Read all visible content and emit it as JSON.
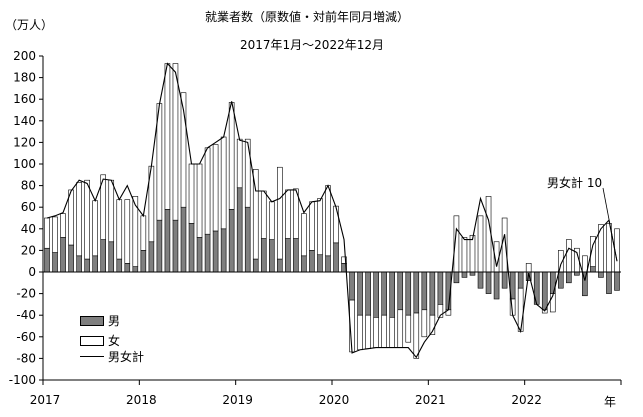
{
  "title": "就業者数（原数値・対前年同月増減）",
  "subtitle": "2017年1月～2022年12月",
  "unit": "（万人）",
  "x_axis_suffix": "年",
  "annotation": "男女計 10",
  "legend": {
    "male": "男",
    "female": "女",
    "total": "男女計"
  },
  "colors": {
    "male": "#7f7f7f",
    "female": "#ffffff",
    "line": "#000000",
    "axis": "#000000"
  },
  "chart_data": {
    "type": "bar",
    "title": "就業者数（原数値・対前年同月増減）",
    "subtitle": "2017年1月～2022年12月",
    "ylabel": "（万人）",
    "xlabel": "年",
    "ylim": [
      -100,
      200
    ],
    "yticks": [
      -100,
      -80,
      -60,
      -40,
      -20,
      0,
      20,
      40,
      60,
      80,
      100,
      120,
      140,
      160,
      180,
      200
    ],
    "year_labels": [
      "2017",
      "2018",
      "2019",
      "2020",
      "2021",
      "2022"
    ],
    "stacked": true,
    "grid": false,
    "categories": [
      "2017-01",
      "2017-02",
      "2017-03",
      "2017-04",
      "2017-05",
      "2017-06",
      "2017-07",
      "2017-08",
      "2017-09",
      "2017-10",
      "2017-11",
      "2017-12",
      "2018-01",
      "2018-02",
      "2018-03",
      "2018-04",
      "2018-05",
      "2018-06",
      "2018-07",
      "2018-08",
      "2018-09",
      "2018-10",
      "2018-11",
      "2018-12",
      "2019-01",
      "2019-02",
      "2019-03",
      "2019-04",
      "2019-05",
      "2019-06",
      "2019-07",
      "2019-08",
      "2019-09",
      "2019-10",
      "2019-11",
      "2019-12",
      "2020-01",
      "2020-02",
      "2020-03",
      "2020-04",
      "2020-05",
      "2020-06",
      "2020-07",
      "2020-08",
      "2020-09",
      "2020-10",
      "2020-11",
      "2020-12",
      "2021-01",
      "2021-02",
      "2021-03",
      "2021-04",
      "2021-05",
      "2021-06",
      "2021-07",
      "2021-08",
      "2021-09",
      "2021-10",
      "2021-11",
      "2021-12",
      "2022-01",
      "2022-02",
      "2022-03",
      "2022-04",
      "2022-05",
      "2022-06",
      "2022-07",
      "2022-08",
      "2022-09",
      "2022-10",
      "2022-11",
      "2022-12"
    ],
    "series": [
      {
        "name": "男",
        "kind": "bar",
        "values": [
          22,
          18,
          32,
          25,
          15,
          12,
          15,
          30,
          28,
          12,
          8,
          5,
          20,
          28,
          48,
          58,
          48,
          60,
          45,
          32,
          35,
          38,
          40,
          58,
          78,
          60,
          12,
          31,
          30,
          12,
          31,
          31,
          15,
          20,
          16,
          15,
          27,
          8,
          -26,
          -40,
          -40,
          -42,
          -40,
          -42,
          -35,
          -40,
          -38,
          -35,
          -40,
          -30,
          -35,
          -10,
          -5,
          -3,
          -15,
          -20,
          -25,
          -15,
          -25,
          -15,
          -8,
          -30,
          -35,
          -20,
          -15,
          -10,
          -3,
          -22,
          5,
          -5,
          -20,
          -17
        ]
      },
      {
        "name": "女",
        "kind": "bar",
        "values": [
          28,
          33,
          22,
          51,
          68,
          73,
          51,
          60,
          57,
          55,
          59,
          65,
          32,
          70,
          108,
          135,
          145,
          106,
          55,
          68,
          80,
          80,
          85,
          99,
          45,
          63,
          83,
          44,
          35,
          85,
          45,
          46,
          39,
          45,
          52,
          65,
          34,
          6,
          -48,
          -32,
          -31,
          -28,
          -30,
          -28,
          -35,
          -25,
          -42,
          -25,
          -18,
          -12,
          -5,
          52,
          32,
          34,
          52,
          70,
          28,
          50,
          -15,
          -40,
          8,
          0,
          -3,
          -17,
          20,
          30,
          22,
          15,
          28,
          44,
          45,
          40
        ]
      },
      {
        "name": "男女計",
        "kind": "line",
        "values": [
          50,
          52,
          55,
          75,
          85,
          82,
          66,
          86,
          85,
          67,
          80,
          62,
          52,
          98,
          155,
          193,
          185,
          150,
          100,
          100,
          115,
          120,
          125,
          158,
          122,
          120,
          75,
          75,
          65,
          68,
          76,
          76,
          55,
          65,
          66,
          80,
          60,
          30,
          -75,
          -72,
          -71,
          -70,
          -70,
          -70,
          -70,
          -70,
          -79,
          -65,
          -55,
          -40,
          -35,
          40,
          30,
          30,
          68,
          48,
          5,
          35,
          -40,
          -55,
          -1,
          -30,
          -36,
          -22,
          7,
          22,
          18,
          -8,
          25,
          40,
          48,
          10
        ]
      }
    ]
  }
}
